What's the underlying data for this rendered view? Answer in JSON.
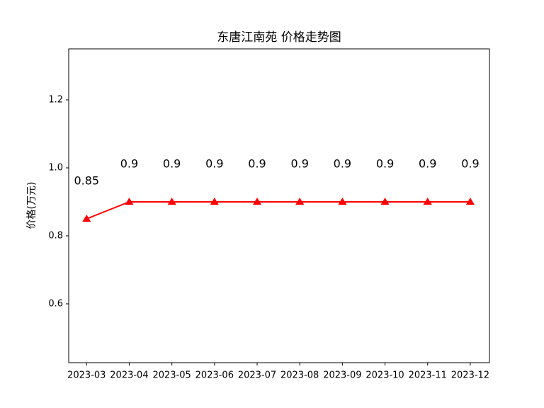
{
  "chart_data": {
    "type": "line",
    "title": "东唐江南苑 价格走势图",
    "y_label": "价格(万元)",
    "categories": [
      "2023-03",
      "2023-04",
      "2023-05",
      "2023-06",
      "2023-07",
      "2023-08",
      "2023-09",
      "2023-10",
      "2023-11",
      "2023-12"
    ],
    "values": [
      0.85,
      0.9,
      0.9,
      0.9,
      0.9,
      0.9,
      0.9,
      0.9,
      0.9,
      0.9
    ],
    "color": "#ff0000",
    "marker": "triangle",
    "ylim": [
      0.427,
      1.35
    ],
    "yticks": [
      0.6,
      0.8,
      {
        "value": 1,
        "label": "1.0"
      },
      1.2
    ],
    "grid": false
  }
}
